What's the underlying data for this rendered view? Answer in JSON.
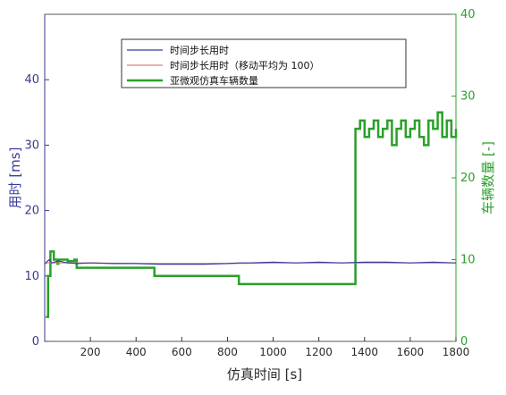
{
  "chart_data": {
    "type": "line",
    "xlabel": "仿真时间 [s]",
    "ylabel_left": "用时 [ms]",
    "ylabel_right": "车辆数量 [-]",
    "xlim": [
      0,
      1800
    ],
    "ylim_left": [
      0,
      50
    ],
    "ylim_right": [
      0,
      40
    ],
    "x_ticks": [
      200,
      400,
      600,
      800,
      1000,
      1200,
      1400,
      1600,
      1800
    ],
    "y_left_ticks": [
      0,
      10,
      20,
      30,
      40
    ],
    "y_right_ticks": [
      0,
      10,
      20,
      30,
      40
    ],
    "legend_position": "top-center",
    "grid": false,
    "colors": {
      "step_time": "#3a3a9c",
      "moving_avg": "#d98080",
      "vehicles": "#2aa02a",
      "left_axis": "#3a3a8c",
      "right_axis": "#2aa02a"
    },
    "series": [
      {
        "name": "时间步长用时",
        "axis": "left",
        "x": [
          0,
          10,
          20,
          30,
          60,
          100,
          140,
          200,
          300,
          400,
          500,
          600,
          700,
          800,
          850,
          900,
          1000,
          1100,
          1200,
          1300,
          1400,
          1500,
          1600,
          1700,
          1800
        ],
        "y": [
          11.8,
          12.2,
          12.5,
          12.0,
          12.3,
          12.0,
          11.9,
          12.0,
          11.9,
          11.9,
          11.8,
          11.8,
          11.8,
          11.9,
          12.0,
          12.0,
          12.1,
          12.0,
          12.1,
          12.0,
          12.1,
          12.1,
          12.0,
          12.1,
          12.0
        ]
      },
      {
        "name": "时间步长用时（移动平均为 100）",
        "axis": "left",
        "x": [
          0,
          100,
          200,
          400,
          600,
          800,
          1000,
          1200,
          1400,
          1600,
          1800
        ],
        "y": [
          12.0,
          12.0,
          12.0,
          11.9,
          11.9,
          11.9,
          12.0,
          12.0,
          12.0,
          12.0,
          12.0
        ]
      },
      {
        "name": "亚微观仿真车辆数量",
        "axis": "right",
        "x": [
          5,
          15,
          25,
          30,
          40,
          50,
          55,
          60,
          80,
          100,
          130,
          140,
          470,
          480,
          840,
          850,
          1350,
          1360,
          1380,
          1400,
          1420,
          1440,
          1460,
          1480,
          1500,
          1520,
          1540,
          1560,
          1580,
          1600,
          1620,
          1640,
          1660,
          1680,
          1700,
          1720,
          1740,
          1760,
          1780,
          1800
        ],
        "y": [
          3,
          8,
          11,
          11,
          10,
          10,
          9.5,
          10,
          10,
          9.8,
          10,
          9,
          9,
          8,
          8,
          7,
          7,
          26,
          27,
          25,
          26,
          27,
          25,
          26,
          27,
          24,
          26,
          27,
          25,
          26,
          27,
          25,
          24,
          27,
          26,
          28,
          25,
          27,
          25,
          26
        ]
      }
    ]
  }
}
